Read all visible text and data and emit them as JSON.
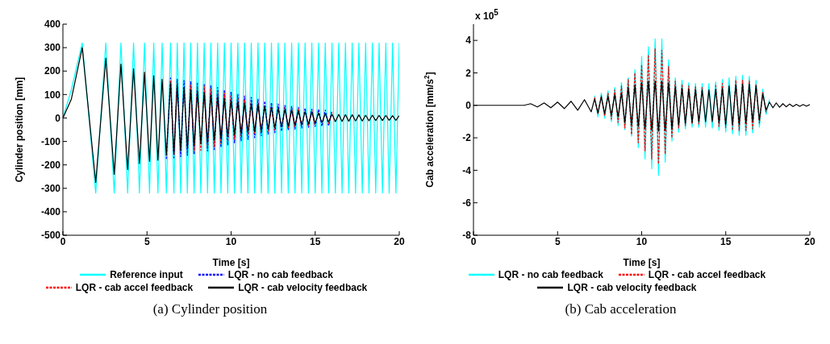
{
  "chart_data": [
    {
      "type": "line",
      "title": "(a) Cylinder position",
      "xlabel": "Time [s]",
      "ylabel": "Cylinder position [mm]",
      "xlim": [
        0,
        20
      ],
      "xticks": [
        0,
        5,
        10,
        15,
        20
      ],
      "ylim": [
        -500,
        400
      ],
      "yticks": [
        -500,
        -400,
        -300,
        -200,
        -100,
        0,
        100,
        200,
        300,
        400
      ],
      "legend": "bottom",
      "x": [
        0,
        0.5,
        1.15,
        1.95,
        2.55,
        3.05,
        3.45,
        3.85,
        4.2,
        4.55,
        4.85,
        5.15,
        5.4,
        5.65,
        5.9,
        6.15,
        6.4,
        6.6,
        6.8,
        7.0,
        7.2,
        7.4,
        7.6,
        7.8,
        8.0,
        8.2,
        8.4,
        8.6,
        8.8,
        9.0,
        9.2,
        9.4,
        9.6,
        9.8,
        10.0,
        10.2,
        10.4,
        10.6,
        10.8,
        11.0,
        11.2,
        11.4,
        11.6,
        11.8,
        12.0,
        12.2,
        12.4,
        12.6,
        12.8,
        13.0,
        13.2,
        13.4,
        13.6,
        13.8,
        14.0,
        14.2,
        14.4,
        14.6,
        14.8,
        15.0,
        15.2,
        15.4,
        15.6,
        15.8,
        16.0,
        16.2,
        16.4,
        16.6,
        16.8,
        17.0,
        17.2,
        17.4,
        17.6,
        17.8,
        18.0,
        18.2,
        18.4,
        18.6,
        18.8,
        19.0,
        19.2,
        19.4,
        19.6,
        19.8,
        20.0
      ],
      "series": [
        {
          "name": "Reference input",
          "color": "#00ffff",
          "line_style": "solid",
          "values": [
            0,
            120,
            320,
            -320,
            320,
            -320,
            320,
            -320,
            320,
            -320,
            320,
            -320,
            320,
            -320,
            320,
            -320,
            320,
            -320,
            320,
            -320,
            320,
            -320,
            320,
            -320,
            320,
            -320,
            320,
            -320,
            320,
            -320,
            320,
            -320,
            320,
            -320,
            320,
            -320,
            320,
            -320,
            320,
            -320,
            320,
            -320,
            320,
            -320,
            320,
            -320,
            320,
            -320,
            320,
            -320,
            320,
            -320,
            320,
            -320,
            320,
            -320,
            320,
            -320,
            320,
            -320,
            320,
            -320,
            320,
            -320,
            320,
            -320,
            320,
            -320,
            320,
            -320,
            320,
            -320,
            320,
            -320,
            320,
            -320,
            320,
            -320,
            320,
            -320,
            320,
            -320,
            320,
            -320,
            320
          ]
        },
        {
          "name": "LQR - no cab feedback",
          "color": "#0000ff",
          "line_style": "dashed",
          "values": [
            null,
            null,
            null,
            null,
            null,
            null,
            null,
            null,
            null,
            null,
            null,
            null,
            null,
            null,
            null,
            -175,
            170,
            -170,
            165,
            -165,
            160,
            -160,
            157,
            -155,
            150,
            null,
            144,
            -141,
            138,
            -135,
            130,
            -125,
            120,
            -115,
            110,
            -106,
            102,
            -98,
            94,
            -92,
            88,
            -84,
            80,
            -76,
            72,
            -69,
            66,
            -63,
            60,
            -57,
            54,
            -52,
            50,
            -48,
            46,
            -44,
            42,
            -40,
            38,
            -37,
            36,
            -35,
            34,
            -33,
            32,
            null,
            null,
            null,
            null,
            null,
            null,
            null,
            null,
            null,
            null,
            null,
            null,
            null,
            null,
            null,
            null,
            null,
            null,
            null,
            null
          ]
        },
        {
          "name": "LQR - cab accel feedback",
          "color": "#ff0000",
          "line_style": "dashed",
          "values": [
            null,
            null,
            null,
            null,
            null,
            null,
            null,
            null,
            null,
            null,
            null,
            null,
            null,
            null,
            null,
            null,
            160,
            -160,
            155,
            null,
            null,
            -145,
            140,
            -140,
            137,
            -138,
            135,
            -131,
            127,
            -122,
            117,
            -111,
            106,
            -100,
            95,
            -90,
            86,
            -81,
            77,
            -73,
            70,
            -67,
            64,
            -62,
            null,
            -58,
            55,
            -53,
            null,
            null,
            46,
            -44,
            42,
            -40,
            38,
            -36,
            null,
            -33,
            32,
            -30,
            null,
            null,
            null,
            -25,
            24,
            null,
            null,
            null,
            null,
            null,
            null,
            null,
            null,
            null,
            null,
            null,
            null,
            null,
            null,
            null,
            null,
            null,
            null,
            null,
            null
          ]
        },
        {
          "name": "LQR - cab velocity feedback",
          "color": "#000000",
          "line_style": "solid",
          "values": [
            0,
            80,
            300,
            -275,
            255,
            -240,
            230,
            -220,
            210,
            -195,
            195,
            -185,
            180,
            -180,
            165,
            -160,
            150,
            -150,
            140,
            -140,
            130,
            -128,
            120,
            -118,
            115,
            -111,
            107,
            -103,
            99,
            -95,
            91,
            -87,
            83,
            -79,
            75,
            -72,
            69,
            -66,
            63,
            -60,
            59,
            -58,
            57,
            -56,
            50,
            -47,
            45,
            -43,
            41,
            -39,
            37,
            -35,
            33,
            -31,
            30,
            -29,
            27,
            -26,
            24,
            -22,
            21,
            -20,
            18,
            -17,
            16,
            -16,
            15,
            -15,
            14,
            -14,
            14,
            -13,
            13,
            -13,
            12,
            -12,
            12,
            -11,
            11,
            -11,
            11,
            -10,
            10,
            -10,
            10
          ]
        }
      ]
    },
    {
      "type": "line",
      "title": "(b) Cab acceleration",
      "xlabel": "Time [s]",
      "ylabel": "Cab acceleration [mm/s$^{2}$]",
      "annotations": [
        "x 10$^{5}$"
      ],
      "xlim": [
        0,
        20
      ],
      "xticks": [
        0,
        5,
        10,
        15,
        20
      ],
      "ylim": [
        -8,
        5
      ],
      "yticks": [
        -8,
        -6,
        -4,
        -2,
        0,
        2,
        4
      ],
      "legend": "bottom",
      "x": [
        0,
        1,
        2,
        3,
        3.4,
        3.8,
        4.2,
        4.6,
        5.0,
        5.4,
        5.8,
        6.2,
        6.6,
        7.0,
        7.2,
        7.4,
        7.6,
        7.8,
        8.0,
        8.2,
        8.4,
        8.6,
        8.8,
        9.0,
        9.2,
        9.4,
        9.6,
        9.8,
        10.0,
        10.2,
        10.4,
        10.6,
        10.8,
        11.0,
        11.2,
        11.4,
        11.6,
        11.8,
        12.0,
        12.2,
        12.4,
        12.6,
        12.8,
        13.0,
        13.2,
        13.4,
        13.6,
        13.8,
        14.0,
        14.2,
        14.4,
        14.6,
        14.8,
        15.0,
        15.2,
        15.4,
        15.6,
        15.8,
        16.0,
        16.2,
        16.4,
        16.6,
        16.8,
        17.0,
        17.2,
        17.4,
        17.6,
        17.8,
        18.0,
        18.2,
        18.4,
        18.6,
        18.8,
        19.0,
        19.2,
        19.4,
        19.6,
        19.8,
        20.0
      ],
      "series": [
        {
          "name": "LQR - no cab feedback",
          "color": "#00ffff",
          "line_style": "solid",
          "values": [
            null,
            null,
            null,
            null,
            null,
            null,
            null,
            null,
            null,
            null,
            null,
            null,
            null,
            null,
            0.6,
            -0.7,
            0.75,
            -0.8,
            0.9,
            -1.0,
            1.1,
            -1.25,
            1.4,
            -1.5,
            1.7,
            -1.9,
            2.2,
            -2.6,
            3.0,
            -3.3,
            3.6,
            -3.9,
            4.1,
            -4.3,
            4.1,
            -3.5,
            2.8,
            -2.2,
            1.7,
            -1.65,
            1.55,
            -1.45,
            1.4,
            -1.35,
            1.35,
            -1.35,
            1.35,
            -1.35,
            1.35,
            -1.4,
            1.45,
            -1.55,
            1.6,
            -1.65,
            1.7,
            -1.75,
            1.8,
            -1.85,
            1.85,
            -1.85,
            1.8,
            -1.7,
            1.55,
            -1.35,
            1.0,
            -0.55,
            0.35,
            null,
            null,
            null,
            null,
            null,
            null,
            null,
            null,
            null,
            null,
            null,
            null
          ]
        },
        {
          "name": "LQR - cab accel feedback",
          "color": "#ff0000",
          "line_style": "dashed",
          "values": [
            null,
            null,
            null,
            null,
            null,
            null,
            null,
            null,
            null,
            null,
            null,
            null,
            null,
            null,
            0.5,
            -0.55,
            0.6,
            -0.65,
            0.75,
            -0.85,
            0.95,
            -1.05,
            1.2,
            -1.4,
            1.6,
            -1.8,
            2.0,
            -2.3,
            2.5,
            -2.8,
            3.1,
            -3.3,
            3.5,
            -3.6,
            3.4,
            -3.0,
            2.4,
            -2.0,
            1.5,
            -1.4,
            1.3,
            -1.25,
            1.2,
            -1.15,
            1.15,
            -1.15,
            1.15,
            null,
            null,
            null,
            1.25,
            -1.3,
            1.35,
            -1.4,
            null,
            -1.5,
            1.55,
            -1.55,
            1.55,
            -1.55,
            1.5,
            -1.45,
            1.3,
            -1.1,
            0.8,
            -0.45,
            null,
            null,
            null,
            null,
            null,
            null,
            null,
            null,
            null,
            null,
            null,
            null,
            null
          ]
        },
        {
          "name": "LQR - cab velocity feedback",
          "color": "#000000",
          "line_style": "solid",
          "values": [
            0,
            0,
            0,
            0,
            0.1,
            -0.1,
            0.15,
            -0.15,
            0.2,
            -0.2,
            0.25,
            -0.3,
            0.35,
            -0.4,
            0.4,
            -0.45,
            0.5,
            -0.5,
            0.55,
            -0.6,
            0.65,
            -0.7,
            0.75,
            -1.05,
            1.1,
            -1.2,
            1.25,
            -1.3,
            1.4,
            -1.45,
            1.5,
            -1.55,
            1.5,
            -1.6,
            1.5,
            -1.55,
            1.4,
            -1.45,
            1.15,
            -1.2,
            1.05,
            -1.1,
            1.0,
            -1.05,
            0.95,
            -1.0,
            0.95,
            -1.0,
            0.95,
            -1.0,
            1.0,
            -1.05,
            1.05,
            -1.2,
            1.2,
            -1.2,
            1.25,
            -1.15,
            1.3,
            -1.1,
            1.3,
            -1.0,
            1.2,
            -0.9,
            0.7,
            -0.3,
            0.2,
            -0.15,
            0.15,
            -0.12,
            0.1,
            -0.09,
            0.08,
            -0.07,
            0.06,
            -0.06,
            0.05,
            -0.05,
            0.05
          ]
        }
      ]
    }
  ]
}
